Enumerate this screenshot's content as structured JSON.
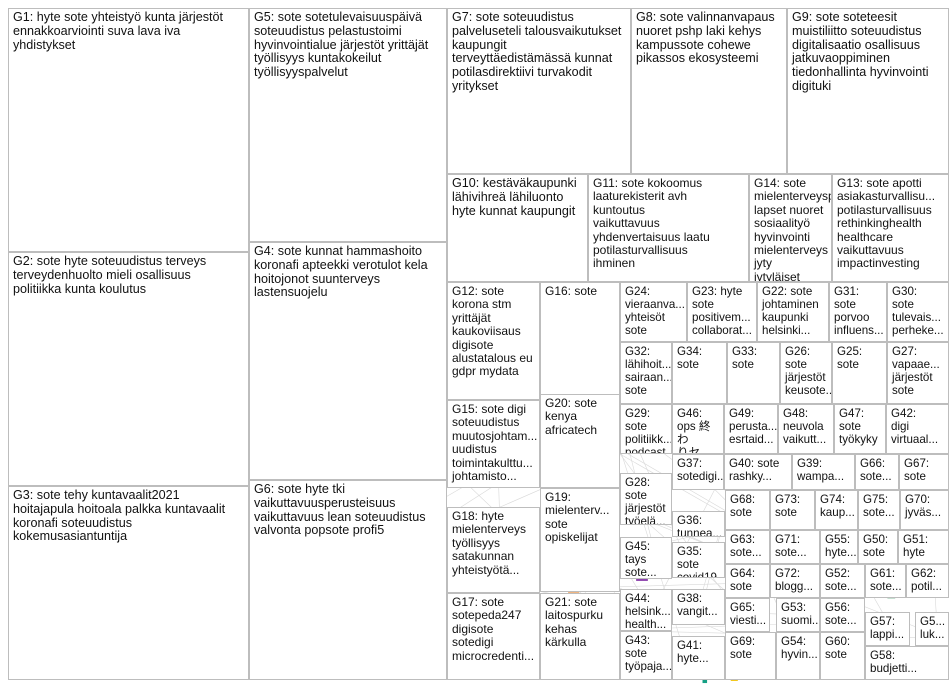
{
  "graph": {
    "background": "#ffffff",
    "edge_color": "#d9d9d9",
    "self_loop_color": "#f2b5b5",
    "groups": [
      {
        "id": "G1",
        "label": "G1: hyte sote yhteistyö kunta järjestöt\nennakkoarviointi suva lava iva\nyhdistykset"
      },
      {
        "id": "G2",
        "label": "G2: sote hyte soteuudistus terveys\nterveydenhuolto mieli osallisuus\npolitiikka kunta koulutus"
      },
      {
        "id": "G3",
        "label": "G3: sote tehy kuntavaalit2021\nhoitajapula hoitoala palkka kuntavaalit\nkoronafi soteuudistus\nkokemusasiantuntija"
      },
      {
        "id": "G4",
        "label": "G4: sote kunnat hammashoito\nkoronafi apteekki verotulot kela\nhoitojonot suunterveys\nlastensuojelu"
      },
      {
        "id": "G5",
        "label": "G5: sote sotetulevaisuuspäivä\nsoteuudistus pelastustoimi\nhyvinvointialue järjestöt yrittäjät\ntyöllisyys kuntakokeilut\ntyöllisyyspalvelut"
      },
      {
        "id": "G6",
        "label": "G6: sote hyte tki\nvaikuttavuusperusteisuus\nvaikuttavuus lean soteuudistus\nvalvonta popsote profi5"
      },
      {
        "id": "G7",
        "label": "G7: sote soteuudistus\npalveluseteli talousvaikutukset\nkaupungit\nterveyttäedistämässä kunnat\npotilasdirektiivi turvakodit\nyritykset"
      },
      {
        "id": "G8",
        "label": "G8: sote valinnanvapaus\nnuoret pshp laki kehys\nkampussote cohewe\npikassos ekosysteemi"
      },
      {
        "id": "G9",
        "label": "G9: sote soteteesit\nmuistiliitto soteuudistus\ndigitalisaatio osallisuus\njatkuvaoppiminen\ntiedonhallinta hyvinvointi\ndigituki"
      },
      {
        "id": "G10",
        "label": "G10: kestäväkaupunki\nlähivihreä lähiluonto\nhyte kunnat kaupungit"
      },
      {
        "id": "G11",
        "label": "G11: sote kokoomus\nlaaturekisterit avh\nkuntoutus\nvaikuttavuus\nyhdenvertaisuus laatu\npotilasturvallisuus\nihminen"
      },
      {
        "id": "G14",
        "label": "G14: sote\nmielenterveyspa...\nlapset nuoret\nsosiaalityö\nhyvinvointi\nmielenterveys jyty\njytyläiset"
      },
      {
        "id": "G13",
        "label": "G13: sote apotti\nasiakasturvallisu...\npotilasturvallisuus\nrethinkinghealth\nhealthcare\nvaikuttavuus\nimpactinvesting"
      },
      {
        "id": "G12",
        "label": "G12: sote\nkorona stm\nyrittäjät\nkaukoviisaus\ndigisote\nalustatalous eu\ngdpr mydata"
      },
      {
        "id": "G16",
        "label": "G16: sote"
      },
      {
        "id": "G24",
        "label": "G24:\nvieraanva...\nyhteisöt\nsote"
      },
      {
        "id": "G23",
        "label": "G23: hyte\nsote\npositivem...\ncollaborat..."
      },
      {
        "id": "G22",
        "label": "G22: sote\njohtaminen\nkaupunki\nhelsinki..."
      },
      {
        "id": "G31",
        "label": "G31:\nsote\nporvoo\ninfluens..."
      },
      {
        "id": "G30",
        "label": "G30:\nsote\ntulevais...\nperheke..."
      },
      {
        "id": "G32",
        "label": "G32:\nlähihoit...\nsairaan...\nsote"
      },
      {
        "id": "G34",
        "label": "G34:\nsote"
      },
      {
        "id": "G33",
        "label": "G33:\nsote"
      },
      {
        "id": "G26",
        "label": "G26:\nsote\njärjestöt\nkeusote..."
      },
      {
        "id": "G25",
        "label": "G25:\nsote"
      },
      {
        "id": "G27",
        "label": "G27:\nvapaae...\njärjestöt\nsote"
      },
      {
        "id": "G15",
        "label": "G15: sote digi\nsoteuudistus\nmuutosjohtam...\nuudistus\ntoimintakulttu...\njohtamisto..."
      },
      {
        "id": "G20",
        "label": "G20: sote\nkenya\nafricatech"
      },
      {
        "id": "G29",
        "label": "G29:\nsote\npolitiikk...\npodcast"
      },
      {
        "id": "G46",
        "label": "G46:\nops 終わ\nりセラ..."
      },
      {
        "id": "G49",
        "label": "G49:\nperusta...\nesrtaid..."
      },
      {
        "id": "G48",
        "label": "G48:\nneuvola\nvaikutt..."
      },
      {
        "id": "G47",
        "label": "G47:\nsote\ntyökyky"
      },
      {
        "id": "G42",
        "label": "G42:\ndigi\nvirtuaal..."
      },
      {
        "id": "G37",
        "label": "G37:\nsotedigi..."
      },
      {
        "id": "G40",
        "label": "G40: sote\nrashky..."
      },
      {
        "id": "G39",
        "label": "G39:\nwampa..."
      },
      {
        "id": "G66",
        "label": "G66:\nsote..."
      },
      {
        "id": "G67",
        "label": "G67:\nsote"
      },
      {
        "id": "G28",
        "label": "G28:\nsote\njärjestöt\ntyöelä..."
      },
      {
        "id": "G68",
        "label": "G68:\nsote"
      },
      {
        "id": "G73",
        "label": "G73:\nsote"
      },
      {
        "id": "G74",
        "label": "G74:\nkaup..."
      },
      {
        "id": "G75",
        "label": "G75:\nsote..."
      },
      {
        "id": "G70",
        "label": "G70:\njyväs..."
      },
      {
        "id": "G19",
        "label": "G19:\nmielenterv...\nsote\nopiskelijat"
      },
      {
        "id": "G36",
        "label": "G36:\ntunnea..."
      },
      {
        "id": "G63",
        "label": "G63:\nsote..."
      },
      {
        "id": "G71",
        "label": "G71:\nsote..."
      },
      {
        "id": "G55",
        "label": "G55:\nhyte..."
      },
      {
        "id": "G50",
        "label": "G50:\nsote"
      },
      {
        "id": "G51",
        "label": "G51:\nhyte"
      },
      {
        "id": "G18",
        "label": "G18: hyte\nmielenterveys\ntyöllisyys\nsatakunnan\nyhteistyötä..."
      },
      {
        "id": "G45",
        "label": "G45:\ntays\nsote..."
      },
      {
        "id": "G35",
        "label": "G35:\nsote\ncovid19..."
      },
      {
        "id": "G64",
        "label": "G64:\nsote"
      },
      {
        "id": "G72",
        "label": "G72:\nblogg..."
      },
      {
        "id": "G52",
        "label": "G52:\nsote..."
      },
      {
        "id": "G61",
        "label": "G61:\nsote..."
      },
      {
        "id": "G62",
        "label": "G62:\npotil..."
      },
      {
        "id": "G44",
        "label": "G44:\nhelsink...\nhealth..."
      },
      {
        "id": "G38",
        "label": "G38:\nvangit..."
      },
      {
        "id": "G65",
        "label": "G65:\nviesti..."
      },
      {
        "id": "G53",
        "label": "G53:\nsuomi..."
      },
      {
        "id": "G56",
        "label": "G56:\nsote..."
      },
      {
        "id": "G57",
        "label": "G57:\nlappi..."
      },
      {
        "id": "G59",
        "label": "G5...\nluk..."
      },
      {
        "id": "G17",
        "label": "G17: sote\nsotepeda247\ndigisote\nsotedigi\nmicrocredenti..."
      },
      {
        "id": "G21",
        "label": "G21: sote\nlaitospurku\nkehas\nkärkulla"
      },
      {
        "id": "G43",
        "label": "G43:\nsote\ntyöpaja..."
      },
      {
        "id": "G41",
        "label": "G41:\nhyte..."
      },
      {
        "id": "G69",
        "label": "G69:\nsote"
      },
      {
        "id": "G54",
        "label": "G54:\nhyvin..."
      },
      {
        "id": "G60",
        "label": "G60:\nsote"
      },
      {
        "id": "G58",
        "label": "G58:\nbudjetti..."
      },
      {
        "id": "G60b",
        "label": "sote"
      }
    ]
  }
}
